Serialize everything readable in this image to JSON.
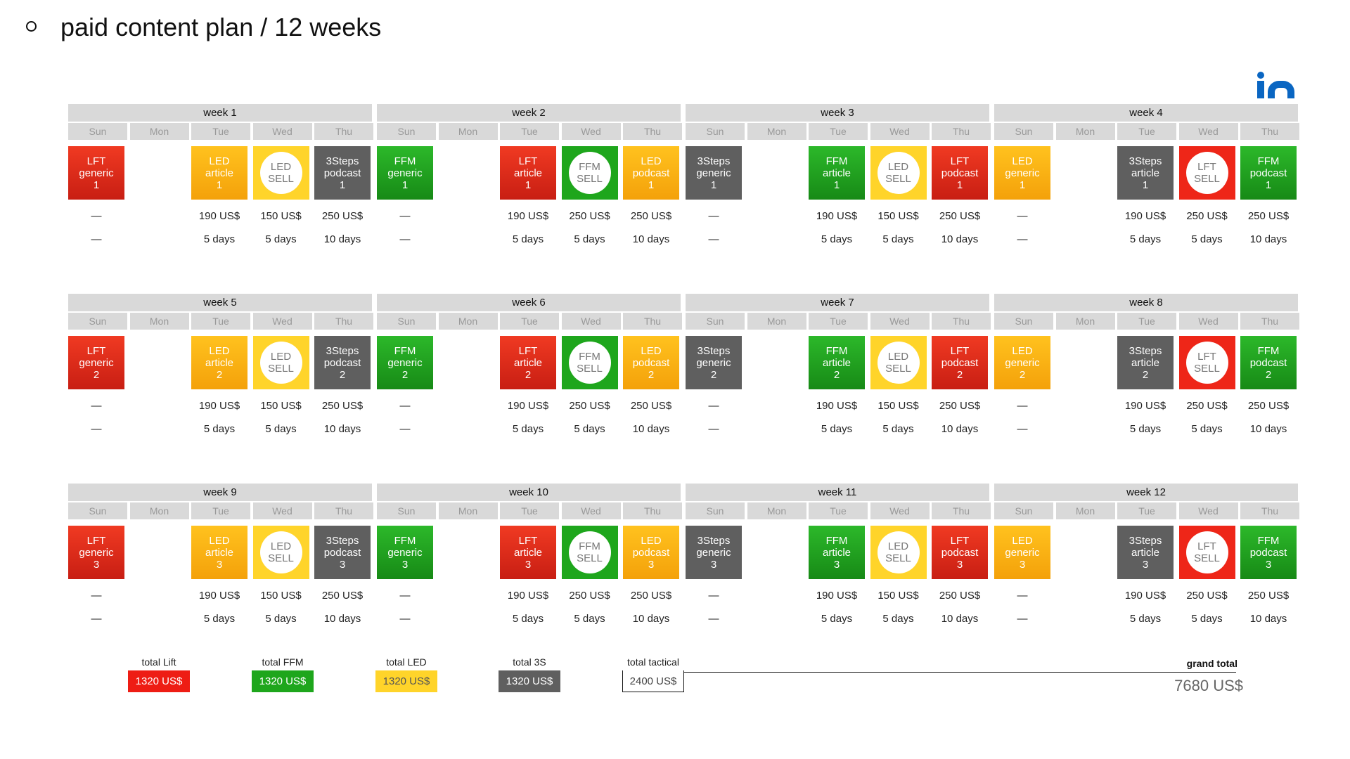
{
  "title": "paid content plan / 12 weeks",
  "logo": {
    "icon": "linkedin-icon",
    "color": "#0a66c2"
  },
  "day_names": [
    "Sun",
    "Mon",
    "Tue",
    "Wed",
    "Thu"
  ],
  "colors": {
    "LFT": "#e02a1a",
    "FFM": "#22a020",
    "LED": "#ffb81c",
    "LED_SELL": "#ffd42a",
    "3Steps": "#5f5f5f"
  },
  "weeks": [
    {
      "label": "week 1",
      "tiles": [
        {
          "day": 0,
          "text": "LFT\ngeneric\n1",
          "style": "red"
        },
        {
          "day": 2,
          "text": "LED\narticle\n1",
          "style": "orange"
        },
        {
          "day": 3,
          "text": "LED\nSELL",
          "style": "yellow",
          "circle": true
        },
        {
          "day": 4,
          "text": "3Steps\npodcast\n1",
          "style": "gray"
        }
      ],
      "prices": [
        "—",
        "",
        "190 US$",
        "150 US$",
        "250 US$"
      ],
      "durations": [
        "—",
        "",
        "5 days",
        "5 days",
        "10 days"
      ]
    },
    {
      "label": "week 2",
      "tiles": [
        {
          "day": 0,
          "text": "FFM\ngeneric\n1",
          "style": "green"
        },
        {
          "day": 2,
          "text": "LFT\narticle\n1",
          "style": "red"
        },
        {
          "day": 3,
          "text": "FFM\nSELL",
          "style": "green-flat",
          "circle": true
        },
        {
          "day": 4,
          "text": "LED\npodcast\n1",
          "style": "orange"
        }
      ],
      "prices": [
        "—",
        "",
        "190 US$",
        "250 US$",
        "250 US$"
      ],
      "durations": [
        "—",
        "",
        "5 days",
        "5 days",
        "10 days"
      ]
    },
    {
      "label": "week 3",
      "tiles": [
        {
          "day": 0,
          "text": "3Steps\ngeneric\n1",
          "style": "gray"
        },
        {
          "day": 2,
          "text": "FFM\narticle\n1",
          "style": "green"
        },
        {
          "day": 3,
          "text": "LED\nSELL",
          "style": "yellow",
          "circle": true
        },
        {
          "day": 4,
          "text": "LFT\npodcast\n1",
          "style": "red"
        }
      ],
      "prices": [
        "—",
        "",
        "190 US$",
        "150 US$",
        "250 US$"
      ],
      "durations": [
        "—",
        "",
        "5 days",
        "5 days",
        "10 days"
      ]
    },
    {
      "label": "week 4",
      "tiles": [
        {
          "day": 0,
          "text": "LED\ngeneric\n1",
          "style": "orange"
        },
        {
          "day": 2,
          "text": "3Steps\narticle\n1",
          "style": "gray"
        },
        {
          "day": 3,
          "text": "LFT\nSELL",
          "style": "red-flat",
          "circle": true
        },
        {
          "day": 4,
          "text": "FFM\npodcast\n1",
          "style": "green"
        }
      ],
      "prices": [
        "—",
        "",
        "190 US$",
        "250 US$",
        "250 US$"
      ],
      "durations": [
        "—",
        "",
        "5 days",
        "5 days",
        "10 days"
      ]
    },
    {
      "label": "week 5",
      "tiles": [
        {
          "day": 0,
          "text": "LFT\ngeneric\n2",
          "style": "red"
        },
        {
          "day": 2,
          "text": "LED\narticle\n2",
          "style": "orange"
        },
        {
          "day": 3,
          "text": "LED\nSELL",
          "style": "yellow",
          "circle": true
        },
        {
          "day": 4,
          "text": "3Steps\npodcast\n2",
          "style": "gray"
        }
      ],
      "prices": [
        "—",
        "",
        "190 US$",
        "150 US$",
        "250 US$"
      ],
      "durations": [
        "—",
        "",
        "5 days",
        "5 days",
        "10 days"
      ]
    },
    {
      "label": "week 6",
      "tiles": [
        {
          "day": 0,
          "text": "FFM\ngeneric\n2",
          "style": "green"
        },
        {
          "day": 2,
          "text": "LFT\narticle\n2",
          "style": "red"
        },
        {
          "day": 3,
          "text": "FFM\nSELL",
          "style": "green-flat",
          "circle": true
        },
        {
          "day": 4,
          "text": "LED\npodcast\n2",
          "style": "orange"
        }
      ],
      "prices": [
        "—",
        "",
        "190 US$",
        "250 US$",
        "250 US$"
      ],
      "durations": [
        "—",
        "",
        "5 days",
        "5 days",
        "10 days"
      ]
    },
    {
      "label": "week 7",
      "tiles": [
        {
          "day": 0,
          "text": "3Steps\ngeneric\n2",
          "style": "gray"
        },
        {
          "day": 2,
          "text": "FFM\narticle\n2",
          "style": "green"
        },
        {
          "day": 3,
          "text": "LED\nSELL",
          "style": "yellow",
          "circle": true
        },
        {
          "day": 4,
          "text": "LFT\npodcast\n2",
          "style": "red"
        }
      ],
      "prices": [
        "—",
        "",
        "190 US$",
        "150 US$",
        "250 US$"
      ],
      "durations": [
        "—",
        "",
        "5 days",
        "5 days",
        "10 days"
      ]
    },
    {
      "label": "week 8",
      "tiles": [
        {
          "day": 0,
          "text": "LED\ngeneric\n2",
          "style": "orange"
        },
        {
          "day": 2,
          "text": "3Steps\narticle\n2",
          "style": "gray"
        },
        {
          "day": 3,
          "text": "LFT\nSELL",
          "style": "red-flat",
          "circle": true
        },
        {
          "day": 4,
          "text": "FFM\npodcast\n2",
          "style": "green"
        }
      ],
      "prices": [
        "—",
        "",
        "190 US$",
        "250 US$",
        "250 US$"
      ],
      "durations": [
        "—",
        "",
        "5 days",
        "5 days",
        "10 days"
      ]
    },
    {
      "label": "week 9",
      "tiles": [
        {
          "day": 0,
          "text": "LFT\ngeneric\n3",
          "style": "red"
        },
        {
          "day": 2,
          "text": "LED\narticle\n3",
          "style": "orange"
        },
        {
          "day": 3,
          "text": "LED\nSELL",
          "style": "yellow",
          "circle": true
        },
        {
          "day": 4,
          "text": "3Steps\npodcast\n3",
          "style": "gray"
        }
      ],
      "prices": [
        "—",
        "",
        "190 US$",
        "150 US$",
        "250 US$"
      ],
      "durations": [
        "—",
        "",
        "5 days",
        "5 days",
        "10 days"
      ]
    },
    {
      "label": "week 10",
      "tiles": [
        {
          "day": 0,
          "text": "FFM\ngeneric\n3",
          "style": "green"
        },
        {
          "day": 2,
          "text": "LFT\narticle\n3",
          "style": "red"
        },
        {
          "day": 3,
          "text": "FFM\nSELL",
          "style": "green-flat",
          "circle": true
        },
        {
          "day": 4,
          "text": "LED\npodcast\n3",
          "style": "orange"
        }
      ],
      "prices": [
        "—",
        "",
        "190 US$",
        "250 US$",
        "250 US$"
      ],
      "durations": [
        "—",
        "",
        "5 days",
        "5 days",
        "10 days"
      ]
    },
    {
      "label": "week 11",
      "tiles": [
        {
          "day": 0,
          "text": "3Steps\ngeneric\n3",
          "style": "gray"
        },
        {
          "day": 2,
          "text": "FFM\narticle\n3",
          "style": "green"
        },
        {
          "day": 3,
          "text": "LED\nSELL",
          "style": "yellow",
          "circle": true
        },
        {
          "day": 4,
          "text": "LFT\npodcast\n3",
          "style": "red"
        }
      ],
      "prices": [
        "—",
        "",
        "190 US$",
        "150 US$",
        "250 US$"
      ],
      "durations": [
        "—",
        "",
        "5 days",
        "5 days",
        "10 days"
      ]
    },
    {
      "label": "week 12",
      "tiles": [
        {
          "day": 0,
          "text": "LED\ngeneric\n3",
          "style": "orange"
        },
        {
          "day": 2,
          "text": "3Steps\narticle\n3",
          "style": "gray"
        },
        {
          "day": 3,
          "text": "LFT\nSELL",
          "style": "red-flat",
          "circle": true
        },
        {
          "day": 4,
          "text": "FFM\npodcast\n3",
          "style": "green"
        }
      ],
      "prices": [
        "—",
        "",
        "190 US$",
        "250 US$",
        "250 US$"
      ],
      "durations": [
        "—",
        "",
        "5 days",
        "5 days",
        "10 days"
      ]
    }
  ],
  "totals": {
    "lift": {
      "label": "total Lift",
      "value": "1320 US$",
      "style": "red"
    },
    "ffm": {
      "label": "total FFM",
      "value": "1320 US$",
      "style": "green"
    },
    "led": {
      "label": "total LED",
      "value": "1320 US$",
      "style": "yellow"
    },
    "s3": {
      "label": "total 3S",
      "value": "1320 US$",
      "style": "gray"
    },
    "tactical": {
      "label": "total tactical",
      "value": "2400 US$",
      "style": "outline"
    },
    "grand_label": "grand total",
    "grand_value": "7680 US$"
  }
}
